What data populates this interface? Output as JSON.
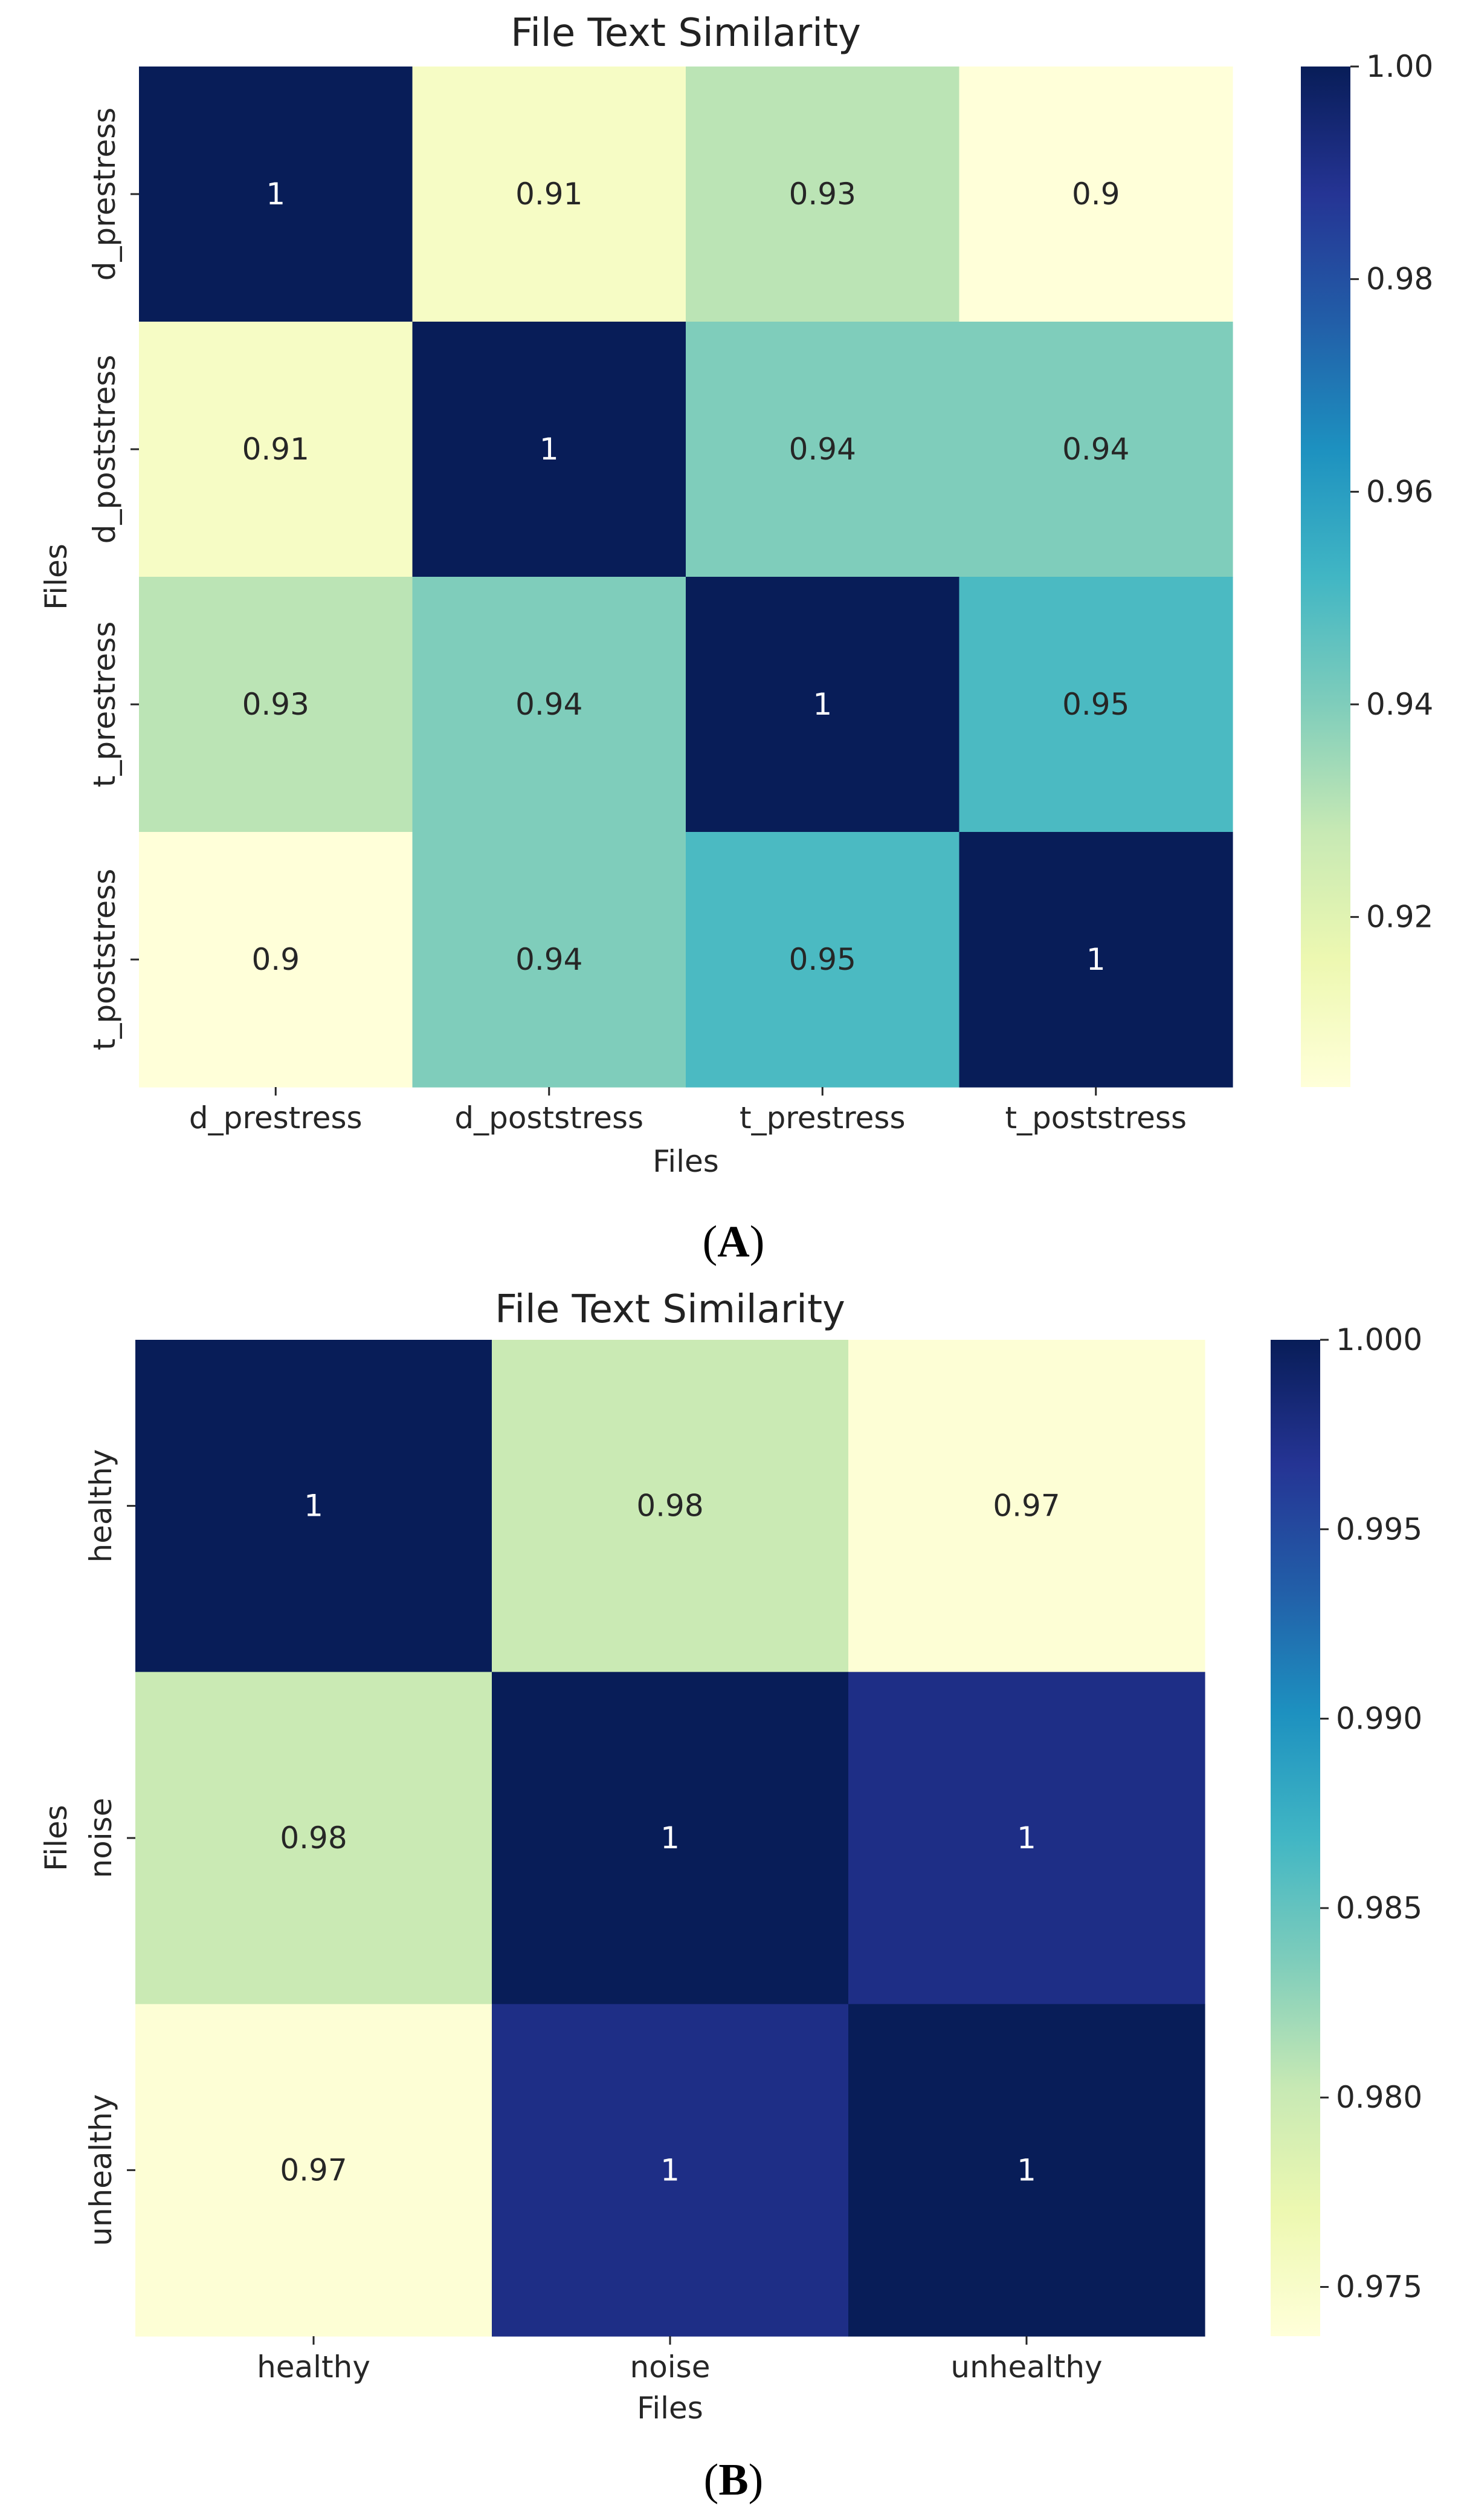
{
  "chart_data": [
    {
      "type": "heatmap",
      "panel": "A",
      "title": "File Text Similarity",
      "xlabel": "Files",
      "ylabel": "Files",
      "x_categories": [
        "d_prestress",
        "d_poststress",
        "t_prestress",
        "t_poststress"
      ],
      "y_categories": [
        "d_prestress",
        "d_poststress",
        "t_prestress",
        "t_poststress"
      ],
      "values": [
        [
          1.0,
          0.91,
          0.93,
          0.9
        ],
        [
          0.91,
          1.0,
          0.94,
          0.94
        ],
        [
          0.93,
          0.94,
          1.0,
          0.95
        ],
        [
          0.9,
          0.94,
          0.95,
          1.0
        ]
      ],
      "annotations": [
        [
          "1",
          "0.91",
          "0.93",
          "0.9"
        ],
        [
          "0.91",
          "1",
          "0.94",
          "0.94"
        ],
        [
          "0.93",
          "0.94",
          "1",
          "0.95"
        ],
        [
          "0.9",
          "0.94",
          "0.95",
          "1"
        ]
      ],
      "colorbar_range": [
        0.904,
        1.0
      ],
      "colorbar_ticks": [
        0.92,
        0.94,
        0.96,
        0.98,
        1.0
      ],
      "colorbar_tick_labels": [
        "0.92",
        "0.94",
        "0.96",
        "0.98",
        "1.00"
      ],
      "colormap": "YlGnBu"
    },
    {
      "type": "heatmap",
      "panel": "B",
      "title": "File Text Similarity",
      "xlabel": "Files",
      "ylabel": "Files",
      "x_categories": [
        "healthy",
        "noise",
        "unhealthy"
      ],
      "y_categories": [
        "healthy",
        "noise",
        "unhealthy"
      ],
      "values": [
        [
          1.0,
          0.98,
          0.974
        ],
        [
          0.98,
          1.0,
          0.9975
        ],
        [
          0.974,
          0.9975,
          1.0
        ]
      ],
      "annotations": [
        [
          "1",
          "0.98",
          "0.97"
        ],
        [
          "0.98",
          "1",
          "1"
        ],
        [
          "0.97",
          "1",
          "1"
        ]
      ],
      "colorbar_range": [
        0.9737,
        1.0
      ],
      "colorbar_ticks": [
        0.975,
        0.98,
        0.985,
        0.99,
        0.995,
        1.0
      ],
      "colorbar_tick_labels": [
        "0.975",
        "0.980",
        "0.985",
        "0.990",
        "0.995",
        "1.000"
      ],
      "colormap": "YlGnBu"
    }
  ],
  "colormap_stops": [
    "#ffffd9",
    "#edf8b1",
    "#c7e9b4",
    "#7fcdbb",
    "#41b6c4",
    "#1d91c0",
    "#225ea8",
    "#253494",
    "#081d58"
  ],
  "panel_labels": [
    {
      "open": "(",
      "letter": "A",
      "close": ")"
    },
    {
      "open": "(",
      "letter": "B",
      "close": ")"
    }
  ]
}
